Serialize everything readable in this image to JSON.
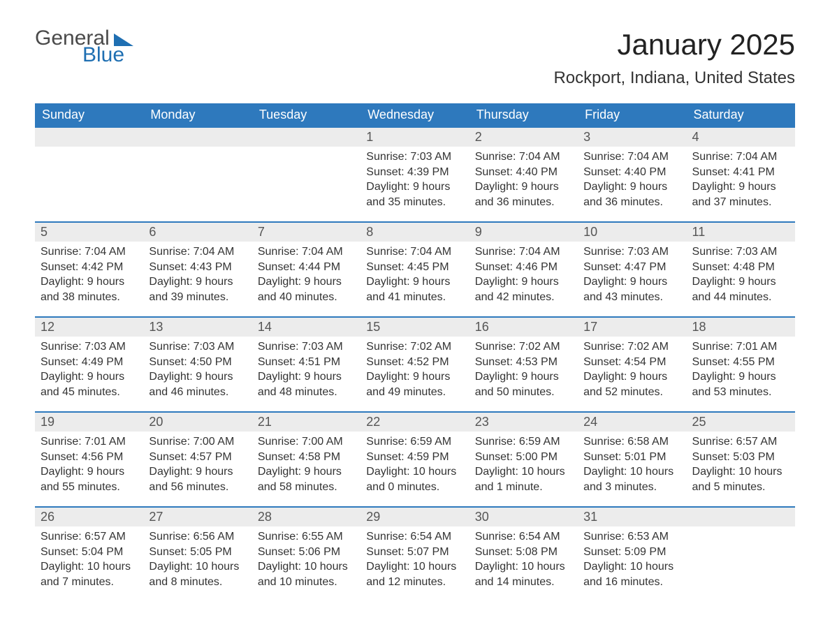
{
  "logo": {
    "text_top": "General",
    "text_bottom": "Blue",
    "accent_color": "#1f6fb2",
    "text_color": "#4a4a4a"
  },
  "title": "January 2025",
  "location": "Rockport, Indiana, United States",
  "colors": {
    "header_bg": "#2e79bd",
    "header_text": "#ffffff",
    "row_border": "#2e79bd",
    "daynum_bg": "#ececec",
    "daynum_text": "#555555",
    "body_text": "#333333",
    "page_bg": "#ffffff"
  },
  "typography": {
    "title_fontsize_pt": 32,
    "location_fontsize_pt": 18,
    "weekday_fontsize_pt": 14,
    "daynum_fontsize_pt": 14,
    "body_fontsize_pt": 12,
    "font_family": "Arial"
  },
  "calendar": {
    "columns": 7,
    "weekdays": [
      "Sunday",
      "Monday",
      "Tuesday",
      "Wednesday",
      "Thursday",
      "Friday",
      "Saturday"
    ],
    "weeks": [
      [
        null,
        null,
        null,
        {
          "n": "1",
          "sunrise": "Sunrise: 7:03 AM",
          "sunset": "Sunset: 4:39 PM",
          "daylight": "Daylight: 9 hours and 35 minutes."
        },
        {
          "n": "2",
          "sunrise": "Sunrise: 7:04 AM",
          "sunset": "Sunset: 4:40 PM",
          "daylight": "Daylight: 9 hours and 36 minutes."
        },
        {
          "n": "3",
          "sunrise": "Sunrise: 7:04 AM",
          "sunset": "Sunset: 4:40 PM",
          "daylight": "Daylight: 9 hours and 36 minutes."
        },
        {
          "n": "4",
          "sunrise": "Sunrise: 7:04 AM",
          "sunset": "Sunset: 4:41 PM",
          "daylight": "Daylight: 9 hours and 37 minutes."
        }
      ],
      [
        {
          "n": "5",
          "sunrise": "Sunrise: 7:04 AM",
          "sunset": "Sunset: 4:42 PM",
          "daylight": "Daylight: 9 hours and 38 minutes."
        },
        {
          "n": "6",
          "sunrise": "Sunrise: 7:04 AM",
          "sunset": "Sunset: 4:43 PM",
          "daylight": "Daylight: 9 hours and 39 minutes."
        },
        {
          "n": "7",
          "sunrise": "Sunrise: 7:04 AM",
          "sunset": "Sunset: 4:44 PM",
          "daylight": "Daylight: 9 hours and 40 minutes."
        },
        {
          "n": "8",
          "sunrise": "Sunrise: 7:04 AM",
          "sunset": "Sunset: 4:45 PM",
          "daylight": "Daylight: 9 hours and 41 minutes."
        },
        {
          "n": "9",
          "sunrise": "Sunrise: 7:04 AM",
          "sunset": "Sunset: 4:46 PM",
          "daylight": "Daylight: 9 hours and 42 minutes."
        },
        {
          "n": "10",
          "sunrise": "Sunrise: 7:03 AM",
          "sunset": "Sunset: 4:47 PM",
          "daylight": "Daylight: 9 hours and 43 minutes."
        },
        {
          "n": "11",
          "sunrise": "Sunrise: 7:03 AM",
          "sunset": "Sunset: 4:48 PM",
          "daylight": "Daylight: 9 hours and 44 minutes."
        }
      ],
      [
        {
          "n": "12",
          "sunrise": "Sunrise: 7:03 AM",
          "sunset": "Sunset: 4:49 PM",
          "daylight": "Daylight: 9 hours and 45 minutes."
        },
        {
          "n": "13",
          "sunrise": "Sunrise: 7:03 AM",
          "sunset": "Sunset: 4:50 PM",
          "daylight": "Daylight: 9 hours and 46 minutes."
        },
        {
          "n": "14",
          "sunrise": "Sunrise: 7:03 AM",
          "sunset": "Sunset: 4:51 PM",
          "daylight": "Daylight: 9 hours and 48 minutes."
        },
        {
          "n": "15",
          "sunrise": "Sunrise: 7:02 AM",
          "sunset": "Sunset: 4:52 PM",
          "daylight": "Daylight: 9 hours and 49 minutes."
        },
        {
          "n": "16",
          "sunrise": "Sunrise: 7:02 AM",
          "sunset": "Sunset: 4:53 PM",
          "daylight": "Daylight: 9 hours and 50 minutes."
        },
        {
          "n": "17",
          "sunrise": "Sunrise: 7:02 AM",
          "sunset": "Sunset: 4:54 PM",
          "daylight": "Daylight: 9 hours and 52 minutes."
        },
        {
          "n": "18",
          "sunrise": "Sunrise: 7:01 AM",
          "sunset": "Sunset: 4:55 PM",
          "daylight": "Daylight: 9 hours and 53 minutes."
        }
      ],
      [
        {
          "n": "19",
          "sunrise": "Sunrise: 7:01 AM",
          "sunset": "Sunset: 4:56 PM",
          "daylight": "Daylight: 9 hours and 55 minutes."
        },
        {
          "n": "20",
          "sunrise": "Sunrise: 7:00 AM",
          "sunset": "Sunset: 4:57 PM",
          "daylight": "Daylight: 9 hours and 56 minutes."
        },
        {
          "n": "21",
          "sunrise": "Sunrise: 7:00 AM",
          "sunset": "Sunset: 4:58 PM",
          "daylight": "Daylight: 9 hours and 58 minutes."
        },
        {
          "n": "22",
          "sunrise": "Sunrise: 6:59 AM",
          "sunset": "Sunset: 4:59 PM",
          "daylight": "Daylight: 10 hours and 0 minutes."
        },
        {
          "n": "23",
          "sunrise": "Sunrise: 6:59 AM",
          "sunset": "Sunset: 5:00 PM",
          "daylight": "Daylight: 10 hours and 1 minute."
        },
        {
          "n": "24",
          "sunrise": "Sunrise: 6:58 AM",
          "sunset": "Sunset: 5:01 PM",
          "daylight": "Daylight: 10 hours and 3 minutes."
        },
        {
          "n": "25",
          "sunrise": "Sunrise: 6:57 AM",
          "sunset": "Sunset: 5:03 PM",
          "daylight": "Daylight: 10 hours and 5 minutes."
        }
      ],
      [
        {
          "n": "26",
          "sunrise": "Sunrise: 6:57 AM",
          "sunset": "Sunset: 5:04 PM",
          "daylight": "Daylight: 10 hours and 7 minutes."
        },
        {
          "n": "27",
          "sunrise": "Sunrise: 6:56 AM",
          "sunset": "Sunset: 5:05 PM",
          "daylight": "Daylight: 10 hours and 8 minutes."
        },
        {
          "n": "28",
          "sunrise": "Sunrise: 6:55 AM",
          "sunset": "Sunset: 5:06 PM",
          "daylight": "Daylight: 10 hours and 10 minutes."
        },
        {
          "n": "29",
          "sunrise": "Sunrise: 6:54 AM",
          "sunset": "Sunset: 5:07 PM",
          "daylight": "Daylight: 10 hours and 12 minutes."
        },
        {
          "n": "30",
          "sunrise": "Sunrise: 6:54 AM",
          "sunset": "Sunset: 5:08 PM",
          "daylight": "Daylight: 10 hours and 14 minutes."
        },
        {
          "n": "31",
          "sunrise": "Sunrise: 6:53 AM",
          "sunset": "Sunset: 5:09 PM",
          "daylight": "Daylight: 10 hours and 16 minutes."
        },
        null
      ]
    ]
  }
}
